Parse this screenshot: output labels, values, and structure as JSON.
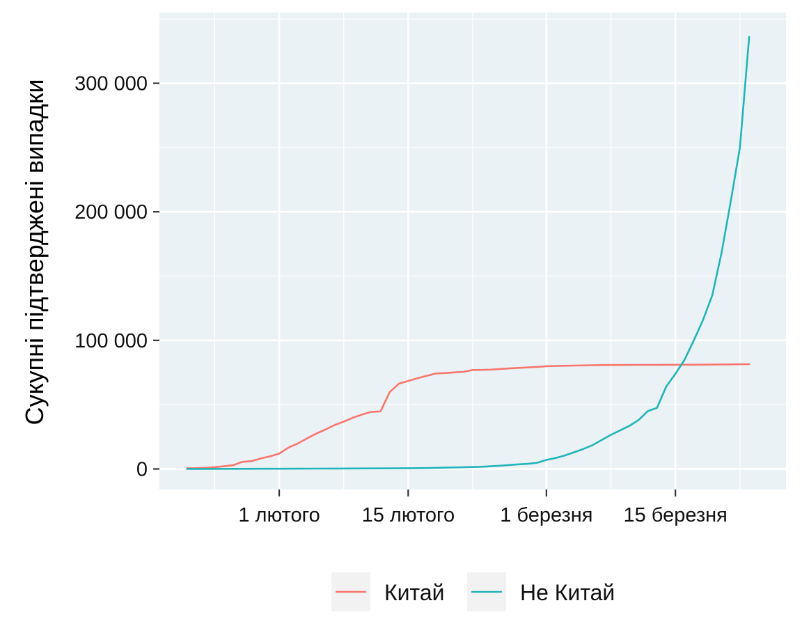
{
  "chart_data": {
    "type": "line",
    "title": "",
    "xlabel": "",
    "ylabel": "Сукупні підтверджені випадки",
    "x_tick_labels": [
      "1 лютого",
      "15 лютого",
      "1 березня",
      "15 березня"
    ],
    "x_tick_dates": [
      "2020-02-01",
      "2020-02-15",
      "2020-03-01",
      "2020-03-15"
    ],
    "x_range": [
      "2020-01-19",
      "2020-03-27"
    ],
    "y_tick_labels": [
      "0",
      "100 000",
      "200 000",
      "300 000"
    ],
    "y_ticks": [
      0,
      100000,
      200000,
      300000
    ],
    "ylim": [
      -16000,
      355000
    ],
    "grid": true,
    "legend_position": "bottom",
    "series": [
      {
        "name": "Китай",
        "color": "#F8766D",
        "points": [
          [
            "2020-01-22",
            548
          ],
          [
            "2020-01-23",
            643
          ],
          [
            "2020-01-24",
            920
          ],
          [
            "2020-01-25",
            1406
          ],
          [
            "2020-01-26",
            2075
          ],
          [
            "2020-01-27",
            2877
          ],
          [
            "2020-01-28",
            5509
          ],
          [
            "2020-01-29",
            6087
          ],
          [
            "2020-01-30",
            8141
          ],
          [
            "2020-01-31",
            9802
          ],
          [
            "2020-02-01",
            11891
          ],
          [
            "2020-02-02",
            16630
          ],
          [
            "2020-02-03",
            19716
          ],
          [
            "2020-02-04",
            23707
          ],
          [
            "2020-02-05",
            27440
          ],
          [
            "2020-02-06",
            30587
          ],
          [
            "2020-02-07",
            34110
          ],
          [
            "2020-02-08",
            36814
          ],
          [
            "2020-02-09",
            39829
          ],
          [
            "2020-02-10",
            42354
          ],
          [
            "2020-02-11",
            44386
          ],
          [
            "2020-02-12",
            44759
          ],
          [
            "2020-02-13",
            59895
          ],
          [
            "2020-02-14",
            66358
          ],
          [
            "2020-02-15",
            68413
          ],
          [
            "2020-02-16",
            70513
          ],
          [
            "2020-02-17",
            72434
          ],
          [
            "2020-02-18",
            74211
          ],
          [
            "2020-02-19",
            74619
          ],
          [
            "2020-02-20",
            75077
          ],
          [
            "2020-02-21",
            75550
          ],
          [
            "2020-02-22",
            77001
          ],
          [
            "2020-02-23",
            77022
          ],
          [
            "2020-02-24",
            77241
          ],
          [
            "2020-02-25",
            77754
          ],
          [
            "2020-02-26",
            78166
          ],
          [
            "2020-02-27",
            78600
          ],
          [
            "2020-02-28",
            78928
          ],
          [
            "2020-02-29",
            79356
          ],
          [
            "2020-03-01",
            79932
          ],
          [
            "2020-03-02",
            80136
          ],
          [
            "2020-03-03",
            80261
          ],
          [
            "2020-03-04",
            80386
          ],
          [
            "2020-03-05",
            80537
          ],
          [
            "2020-03-06",
            80690
          ],
          [
            "2020-03-07",
            80770
          ],
          [
            "2020-03-08",
            80823
          ],
          [
            "2020-03-09",
            80860
          ],
          [
            "2020-03-10",
            80887
          ],
          [
            "2020-03-11",
            80921
          ],
          [
            "2020-03-12",
            80932
          ],
          [
            "2020-03-13",
            80945
          ],
          [
            "2020-03-14",
            80977
          ],
          [
            "2020-03-15",
            81003
          ],
          [
            "2020-03-16",
            81033
          ],
          [
            "2020-03-17",
            81058
          ],
          [
            "2020-03-18",
            81102
          ],
          [
            "2020-03-19",
            81156
          ],
          [
            "2020-03-20",
            81250
          ],
          [
            "2020-03-21",
            81305
          ],
          [
            "2020-03-22",
            81435
          ],
          [
            "2020-03-23",
            81498
          ]
        ]
      },
      {
        "name": "Не Китай",
        "color": "#22B4B8",
        "points": [
          [
            "2020-01-22",
            7
          ],
          [
            "2020-01-24",
            20
          ],
          [
            "2020-01-26",
            60
          ],
          [
            "2020-01-28",
            80
          ],
          [
            "2020-01-30",
            120
          ],
          [
            "2020-02-01",
            150
          ],
          [
            "2020-02-03",
            170
          ],
          [
            "2020-02-05",
            230
          ],
          [
            "2020-02-07",
            290
          ],
          [
            "2020-02-09",
            350
          ],
          [
            "2020-02-11",
            400
          ],
          [
            "2020-02-13",
            480
          ],
          [
            "2020-02-15",
            550
          ],
          [
            "2020-02-17",
            700
          ],
          [
            "2020-02-19",
            1000
          ],
          [
            "2020-02-21",
            1300
          ],
          [
            "2020-02-23",
            1700
          ],
          [
            "2020-02-25",
            2500
          ],
          [
            "2020-02-27",
            3600
          ],
          [
            "2020-02-28",
            4000
          ],
          [
            "2020-02-29",
            4800
          ],
          [
            "2020-03-01",
            7000
          ],
          [
            "2020-03-02",
            8500
          ],
          [
            "2020-03-03",
            10500
          ],
          [
            "2020-03-04",
            13000
          ],
          [
            "2020-03-05",
            15500
          ],
          [
            "2020-03-06",
            18500
          ],
          [
            "2020-03-07",
            22500
          ],
          [
            "2020-03-08",
            26500
          ],
          [
            "2020-03-09",
            30000
          ],
          [
            "2020-03-10",
            33500
          ],
          [
            "2020-03-11",
            38000
          ],
          [
            "2020-03-12",
            45000
          ],
          [
            "2020-03-13",
            47500
          ],
          [
            "2020-03-14",
            64000
          ],
          [
            "2020-03-15",
            74000
          ],
          [
            "2020-03-16",
            85000
          ],
          [
            "2020-03-17",
            100000
          ],
          [
            "2020-03-18",
            116000
          ],
          [
            "2020-03-19",
            135000
          ],
          [
            "2020-03-20",
            168000
          ],
          [
            "2020-03-21",
            208000
          ],
          [
            "2020-03-22",
            250000
          ],
          [
            "2020-03-23",
            336000
          ]
        ]
      }
    ]
  }
}
